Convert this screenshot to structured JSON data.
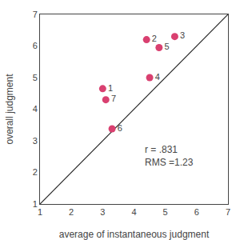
{
  "chart_data": {
    "type": "scatter",
    "xlabel": "average of instantaneous judgment",
    "ylabel": "overall judgment",
    "series": [
      {
        "type": "line",
        "color": "#222222",
        "x": [
          1,
          7
        ],
        "values": [
          1,
          7
        ]
      },
      {
        "type": "scatter",
        "color": "#d94070",
        "x": [
          3.0,
          4.4,
          5.3,
          4.5,
          4.8,
          3.3,
          3.1
        ],
        "values": [
          4.65,
          6.2,
          6.3,
          5.0,
          5.95,
          3.38,
          4.3
        ],
        "labels": [
          "1",
          "2",
          "3",
          "4",
          "5",
          "6",
          "7"
        ]
      }
    ],
    "annotations": [
      {
        "text": "r = .831\nRMS =1.23",
        "x": 4.3,
        "y": 2.1
      }
    ],
    "xlim": [
      1,
      7
    ],
    "ylim": [
      1,
      7
    ],
    "xticks": [
      1,
      2,
      3,
      4,
      5,
      6,
      7
    ],
    "yticks": [
      1,
      2,
      3,
      4,
      5,
      6,
      7
    ],
    "grid": false
  }
}
